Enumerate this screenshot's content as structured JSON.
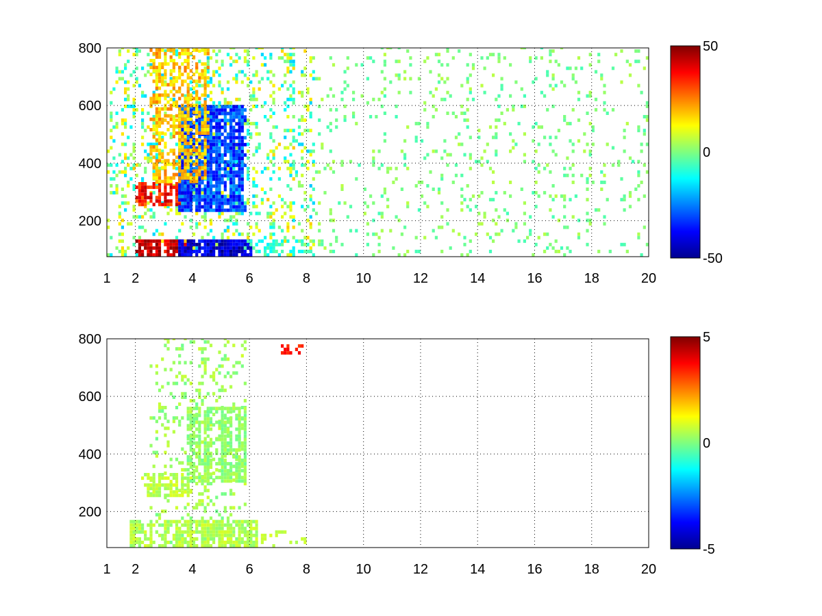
{
  "chart_data": [
    {
      "type": "heatmap",
      "title": "",
      "xlabel": "",
      "ylabel": "",
      "xlim": [
        1,
        20
      ],
      "ylim": [
        75,
        800
      ],
      "grid": true,
      "x_ticks": [
        1,
        2,
        4,
        6,
        8,
        10,
        12,
        14,
        16,
        18,
        20
      ],
      "x_tick_labels": [
        "1",
        "2",
        "4",
        "6",
        "8",
        "10",
        "12",
        "14",
        "16",
        "18",
        "20"
      ],
      "y_ticks": [
        200,
        400,
        600,
        800
      ],
      "y_tick_labels": [
        "200",
        "400",
        "600",
        "800"
      ],
      "colormap": "jet",
      "colorbar": {
        "clim": [
          -50,
          50
        ],
        "ticks": [
          50,
          0,
          -50
        ],
        "tick_labels": [
          "50",
          "0",
          "-50"
        ]
      },
      "features": [
        {
          "x_range": [
            1,
            8.2
          ],
          "y_range": [
            75,
            800
          ],
          "density": 0.25,
          "mean_value": 0,
          "spread": 18
        },
        {
          "x_range": [
            8.2,
            20
          ],
          "y_range": [
            75,
            800
          ],
          "density": 0.1,
          "mean_value": 0,
          "spread": 6
        },
        {
          "x_range": [
            2,
            4
          ],
          "y_range": [
            75,
            125
          ],
          "density": 0.95,
          "mean_value": 42,
          "spread": 8
        },
        {
          "x_range": [
            3.5,
            6
          ],
          "y_range": [
            75,
            125
          ],
          "density": 0.95,
          "mean_value": -42,
          "spread": 8
        },
        {
          "x_range": [
            2,
            4
          ],
          "y_range": [
            250,
            330
          ],
          "density": 0.9,
          "mean_value": 35,
          "spread": 10
        },
        {
          "x_range": [
            3.5,
            5.8
          ],
          "y_range": [
            230,
            600
          ],
          "density": 0.85,
          "mean_value": -30,
          "spread": 10
        },
        {
          "x_range": [
            2.5,
            4.5
          ],
          "y_range": [
            330,
            800
          ],
          "density": 0.55,
          "mean_value": 18,
          "spread": 8
        },
        {
          "x_range": [
            5.8,
            8.2
          ],
          "y_range": [
            75,
            130
          ],
          "density": 0.3,
          "mean_value": -8,
          "spread": 6
        }
      ]
    },
    {
      "type": "heatmap",
      "title": "",
      "xlabel": "",
      "ylabel": "",
      "xlim": [
        1,
        20
      ],
      "ylim": [
        75,
        800
      ],
      "grid": true,
      "x_ticks": [
        1,
        2,
        4,
        6,
        8,
        10,
        12,
        14,
        16,
        18,
        20
      ],
      "x_tick_labels": [
        "1",
        "2",
        "4",
        "6",
        "8",
        "10",
        "12",
        "14",
        "16",
        "18",
        "20"
      ],
      "y_ticks": [
        200,
        400,
        600,
        800
      ],
      "y_tick_labels": [
        "200",
        "400",
        "600",
        "800"
      ],
      "colormap": "jet",
      "colorbar": {
        "clim": [
          -5,
          5
        ],
        "ticks": [
          5,
          0,
          -5
        ],
        "tick_labels": [
          "5",
          "0",
          "-5"
        ]
      },
      "features": [
        {
          "x_range": [
            2.5,
            5.8
          ],
          "y_range": [
            75,
            800
          ],
          "density": 0.22,
          "mean_value": 0.3,
          "spread": 0.5
        },
        {
          "x_range": [
            1.8,
            6.2
          ],
          "y_range": [
            75,
            160
          ],
          "density": 0.85,
          "mean_value": 0.5,
          "spread": 0.4
        },
        {
          "x_range": [
            2.2,
            4
          ],
          "y_range": [
            250,
            330
          ],
          "density": 0.7,
          "mean_value": 0.6,
          "spread": 0.4
        },
        {
          "x_range": [
            3.8,
            5.8
          ],
          "y_range": [
            300,
            560
          ],
          "density": 0.7,
          "mean_value": 0.2,
          "spread": 0.4
        },
        {
          "x_range": [
            6,
            8.2
          ],
          "y_range": [
            75,
            130
          ],
          "density": 0.12,
          "mean_value": 0.5,
          "spread": 0.4
        },
        {
          "x_range": [
            7.1,
            7.8
          ],
          "y_range": [
            745,
            770
          ],
          "density": 0.6,
          "mean_value": 3.5,
          "spread": 0.5
        }
      ]
    }
  ]
}
